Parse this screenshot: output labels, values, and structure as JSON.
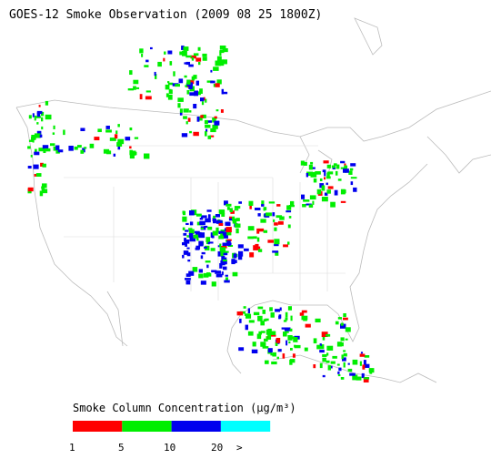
{
  "header": {
    "title": "GOES-12 Smoke Observation (2009 08 25  1800Z)"
  },
  "legend": {
    "title": "Smoke Column Concentration (μg/m³)",
    "colors": [
      "#ff0000",
      "#00ee00",
      "#0000ee",
      "#00ffff"
    ],
    "labels": [
      "1",
      "5",
      "10",
      "20",
      ">"
    ]
  }
}
